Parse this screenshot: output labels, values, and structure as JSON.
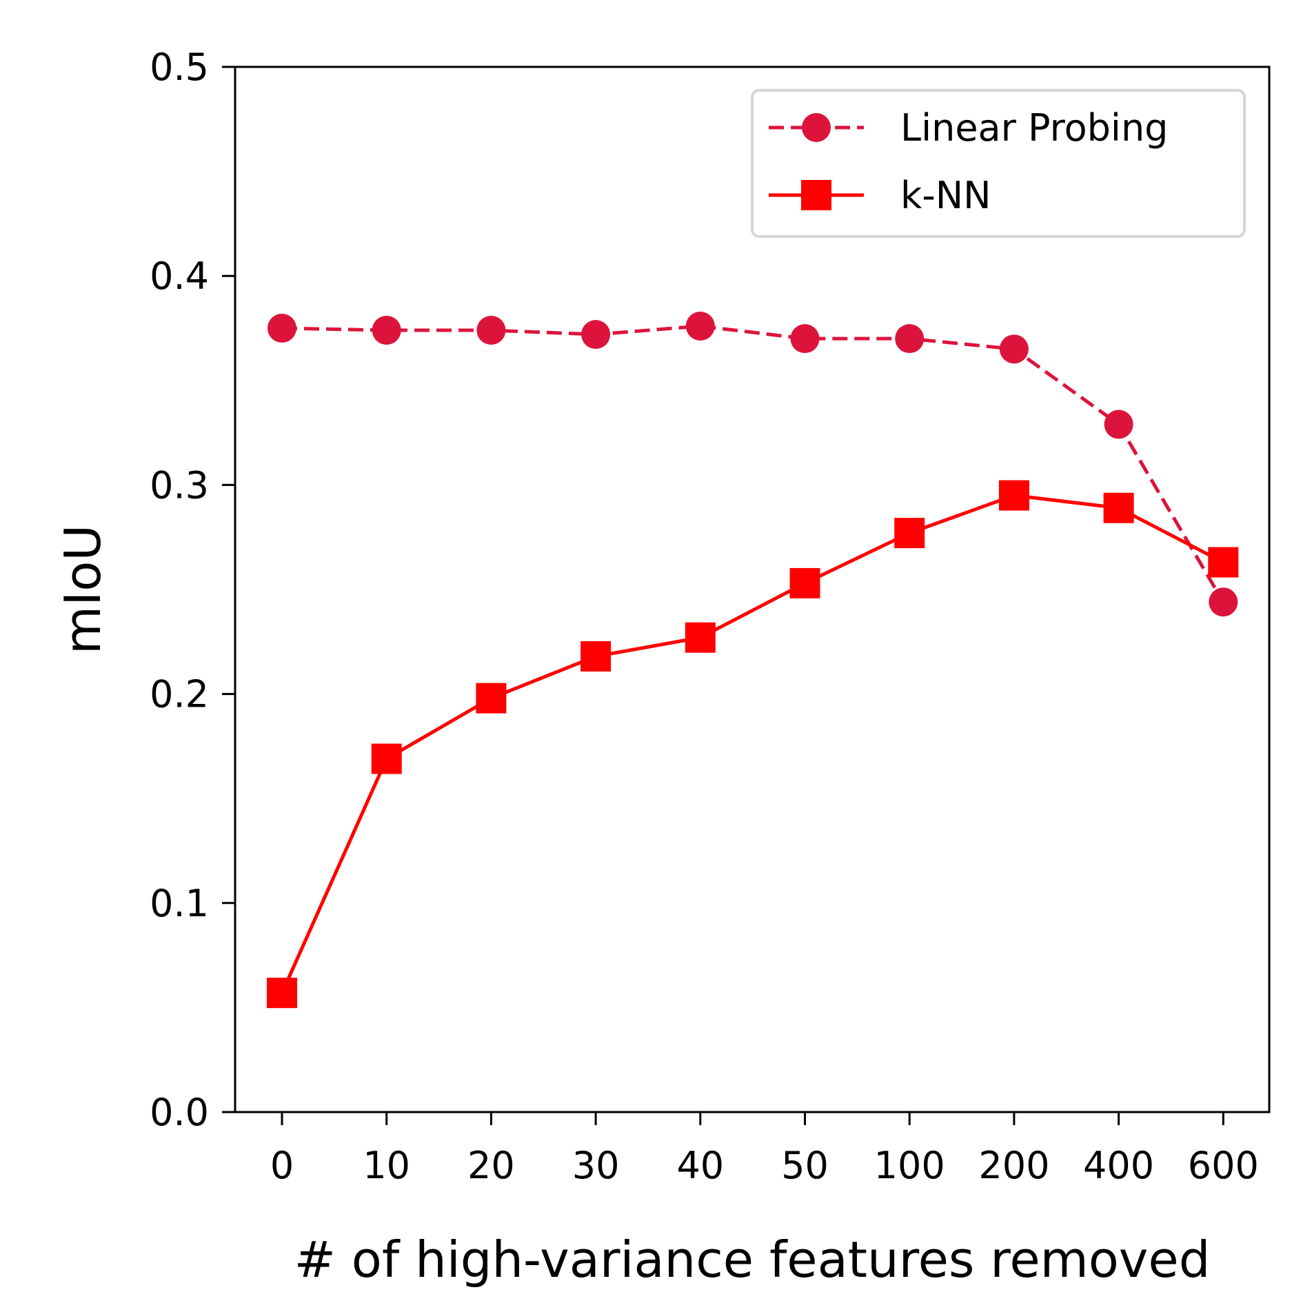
{
  "chart_data": {
    "type": "line",
    "title": "",
    "xlabel": "# of high-variance features removed",
    "ylabel": "mIoU",
    "categories": [
      "0",
      "10",
      "20",
      "30",
      "40",
      "50",
      "100",
      "200",
      "400",
      "600"
    ],
    "ylim": [
      0.0,
      0.5
    ],
    "yticks": [
      "0.0",
      "0.1",
      "0.2",
      "0.3",
      "0.4",
      "0.5"
    ],
    "grid": false,
    "legend_position": "top-right",
    "series": [
      {
        "name": "Linear Probing",
        "values": [
          0.375,
          0.374,
          0.374,
          0.372,
          0.376,
          0.37,
          0.37,
          0.365,
          0.329,
          0.244
        ],
        "color": "#dc143c",
        "line_style": "dashed",
        "marker": "circle"
      },
      {
        "name": "k-NN",
        "values": [
          0.057,
          0.169,
          0.198,
          0.218,
          0.227,
          0.253,
          0.277,
          0.295,
          0.289,
          0.263
        ],
        "color": "#ff0000",
        "line_style": "solid",
        "marker": "square"
      }
    ]
  }
}
